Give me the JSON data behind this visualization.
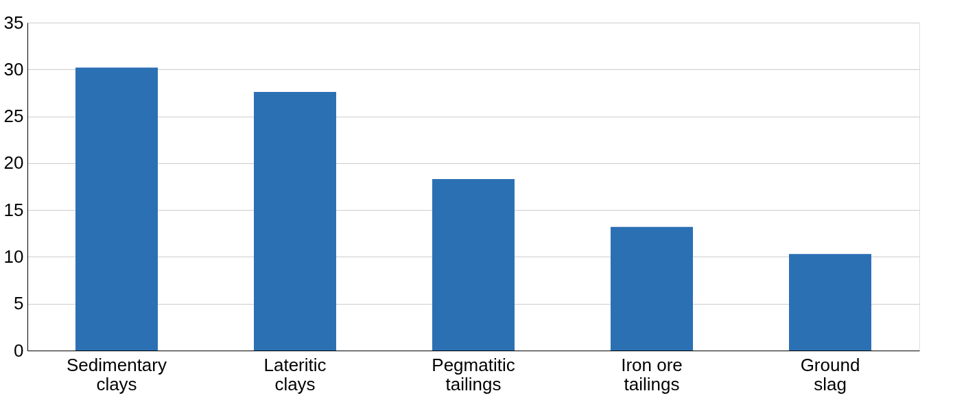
{
  "chart_data": {
    "type": "bar",
    "categories": [
      "Sedimentary clays",
      "Lateritic clays",
      "Pegmatitic tailings",
      "Iron ore tailings",
      "Ground slag"
    ],
    "values": [
      30.2,
      27.6,
      18.3,
      13.2,
      10.3
    ],
    "color": "#2c70b4",
    "ylim": [
      0,
      35
    ],
    "yticks": [
      0,
      5,
      10,
      15,
      20,
      25,
      30,
      35
    ],
    "grid": "y"
  }
}
